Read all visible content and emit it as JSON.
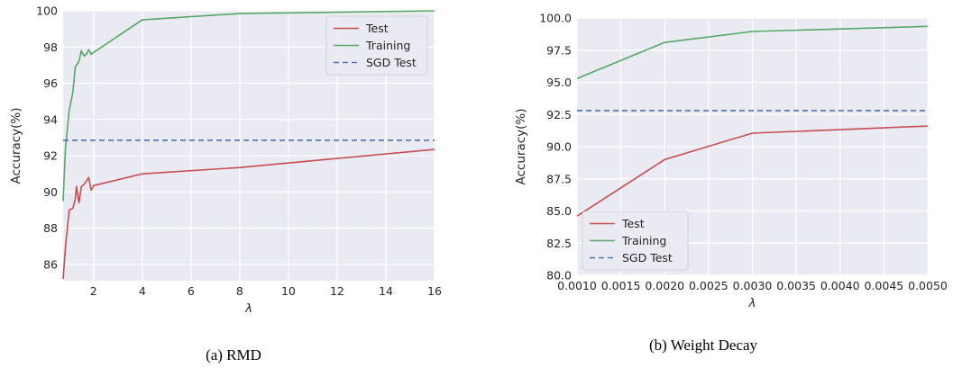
{
  "figure": {
    "captions": [
      "(a) RMD",
      "(b) Weight Decay"
    ]
  },
  "chart_data": [
    {
      "type": "line",
      "xlabel": "λ",
      "ylabel": "Accuracy(%)",
      "xlim": [
        0.75,
        16
      ],
      "ylim": [
        85.1,
        100
      ],
      "xticks": [
        2,
        4,
        6,
        8,
        10,
        12,
        14,
        16
      ],
      "yticks": [
        86,
        88,
        90,
        92,
        94,
        96,
        98,
        100
      ],
      "xtick_labels": [
        "2",
        "4",
        "6",
        "8",
        "10",
        "12",
        "14",
        "16"
      ],
      "ytick_labels": [
        "86",
        "88",
        "90",
        "92",
        "94",
        "96",
        "98",
        "100"
      ],
      "grid": true,
      "legend_position": "top-right",
      "series": [
        {
          "name": "Test",
          "color": "#c44e52",
          "style": "solid",
          "x": [
            0.75,
            0.85,
            1.0,
            1.15,
            1.25,
            1.3,
            1.4,
            1.5,
            1.6,
            1.7,
            1.8,
            1.9,
            2.0,
            4.0,
            8.0,
            16.0
          ],
          "y": [
            85.2,
            87.0,
            89.0,
            89.1,
            89.6,
            90.3,
            89.4,
            90.3,
            90.4,
            90.6,
            90.8,
            90.1,
            90.35,
            91.0,
            91.35,
            92.35
          ]
        },
        {
          "name": "Training",
          "color": "#55a868",
          "style": "solid",
          "x": [
            0.75,
            0.85,
            1.0,
            1.15,
            1.25,
            1.3,
            1.4,
            1.5,
            1.6,
            1.7,
            1.8,
            1.9,
            2.0,
            4.0,
            8.0,
            16.0
          ],
          "y": [
            89.5,
            92.5,
            94.5,
            95.5,
            96.9,
            97.0,
            97.2,
            97.8,
            97.5,
            97.6,
            97.85,
            97.6,
            97.7,
            99.5,
            99.85,
            100.0
          ]
        },
        {
          "name": "SGD Test",
          "color": "#4c72b0",
          "style": "dashed",
          "x": [
            0.75,
            16.0
          ],
          "y": [
            92.85,
            92.85
          ]
        }
      ]
    },
    {
      "type": "line",
      "xlabel": "λ",
      "ylabel": "Accuracy(%)",
      "xlim": [
        0.001,
        0.005
      ],
      "ylim": [
        80.0,
        100.0
      ],
      "xticks": [
        0.001,
        0.0015,
        0.002,
        0.0025,
        0.003,
        0.0035,
        0.004,
        0.0045,
        0.005
      ],
      "yticks": [
        80.0,
        82.5,
        85.0,
        87.5,
        90.0,
        92.5,
        95.0,
        97.5,
        100.0
      ],
      "xtick_labels": [
        "0.0010",
        "0.0015",
        "0.0020",
        "0.0025",
        "0.0030",
        "0.0035",
        "0.0040",
        "0.0045",
        "0.0050"
      ],
      "ytick_labels": [
        "80.0",
        "82.5",
        "85.0",
        "87.5",
        "90.0",
        "92.5",
        "95.0",
        "97.5",
        "100.0"
      ],
      "grid": true,
      "legend_position": "bottom-left",
      "series": [
        {
          "name": "Test",
          "color": "#c44e52",
          "style": "solid",
          "x": [
            0.001,
            0.002,
            0.003,
            0.005
          ],
          "y": [
            84.6,
            89.0,
            91.05,
            91.6
          ]
        },
        {
          "name": "Training",
          "color": "#55a868",
          "style": "solid",
          "x": [
            0.001,
            0.002,
            0.003,
            0.005
          ],
          "y": [
            95.3,
            98.1,
            98.95,
            99.35
          ]
        },
        {
          "name": "SGD Test",
          "color": "#4c72b0",
          "style": "dashed",
          "x": [
            0.001,
            0.005
          ],
          "y": [
            92.8,
            92.8
          ]
        }
      ]
    }
  ]
}
